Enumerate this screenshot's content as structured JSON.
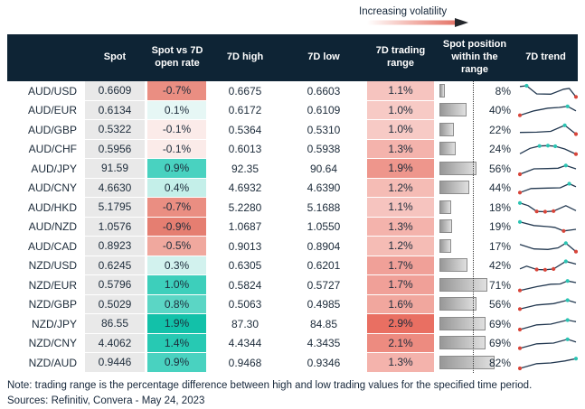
{
  "legend": {
    "label": "Increasing volatility"
  },
  "colors": {
    "header_bg": "#0E2435",
    "text": "#1C2B3A",
    "spot_column_bg": "#E9E9E9",
    "bar_border": "#8C8C8C",
    "bar_gradient_start": "#979797",
    "bar_gradient_end": "#E0E0E0",
    "sparkline_line": "#223850",
    "sparkline_high_dot": "#2BC4B3",
    "sparkline_low_dot": "#D8453A",
    "volatility_arrow_red": "#E4766A"
  },
  "table": {
    "headers": [
      "",
      "Spot",
      "Spot vs 7D open rate",
      "7D high",
      "7D low",
      "7D trading range",
      "Spot position within the range",
      "7D trend"
    ],
    "rows": [
      {
        "pair": "AUD/USD",
        "spot": "0.6609",
        "change": "-0.7%",
        "change_bg": "#EA8E82",
        "high": "0.6675",
        "low": "0.6603",
        "range": "1.1%",
        "range_bg": "#F6C4BF",
        "position_pct": 8,
        "position_label": "8%",
        "trend": {
          "points": [
            [
              0,
              0.15
            ],
            [
              0.12,
              0.1
            ],
            [
              0.3,
              0.7
            ],
            [
              0.55,
              0.72
            ],
            [
              0.78,
              0.35
            ],
            [
              0.88,
              0.3
            ],
            [
              1,
              0.92
            ]
          ],
          "dots": [
            {
              "i": 1,
              "c": "teal"
            },
            {
              "i": 6,
              "c": "red"
            }
          ]
        }
      },
      {
        "pair": "AUD/EUR",
        "spot": "0.6134",
        "change": "0.1%",
        "change_bg": "#E6F7F5",
        "high": "0.6172",
        "low": "0.6109",
        "range": "1.0%",
        "range_bg": "#F7CAC5",
        "position_pct": 40,
        "position_label": "40%",
        "trend": {
          "points": [
            [
              0,
              0.88
            ],
            [
              0.25,
              0.55
            ],
            [
              0.5,
              0.35
            ],
            [
              0.7,
              0.3
            ],
            [
              0.85,
              0.22
            ],
            [
              1,
              0.55
            ]
          ],
          "dots": [
            {
              "i": 0,
              "c": "red"
            },
            {
              "i": 4,
              "c": "teal"
            }
          ]
        }
      },
      {
        "pair": "AUD/GBP",
        "spot": "0.5322",
        "change": "-0.1%",
        "change_bg": "#FBEBE9",
        "high": "0.5364",
        "low": "0.5310",
        "range": "1.0%",
        "range_bg": "#F7CAC5",
        "position_pct": 22,
        "position_label": "22%",
        "trend": {
          "points": [
            [
              0,
              0.68
            ],
            [
              0.3,
              0.66
            ],
            [
              0.55,
              0.6
            ],
            [
              0.8,
              0.15
            ],
            [
              1,
              0.8
            ]
          ],
          "dots": [
            {
              "i": 3,
              "c": "teal"
            },
            {
              "i": 4,
              "c": "red"
            }
          ]
        }
      },
      {
        "pair": "AUD/CHF",
        "spot": "0.5956",
        "change": "-0.1%",
        "change_bg": "#FBEBE9",
        "high": "0.6013",
        "low": "0.5938",
        "range": "1.3%",
        "range_bg": "#F4B3AC",
        "position_pct": 24,
        "position_label": "24%",
        "trend": {
          "points": [
            [
              0,
              0.85
            ],
            [
              0.18,
              0.45
            ],
            [
              0.35,
              0.28
            ],
            [
              0.5,
              0.25
            ],
            [
              0.63,
              0.3
            ],
            [
              0.8,
              0.5
            ],
            [
              1,
              0.88
            ]
          ],
          "dots": [
            {
              "i": 2,
              "c": "teal"
            },
            {
              "i": 3,
              "c": "teal"
            },
            {
              "i": 4,
              "c": "teal"
            },
            {
              "i": 6,
              "c": "red"
            }
          ]
        }
      },
      {
        "pair": "AUD/JPY",
        "spot": "91.59",
        "change": "0.9%",
        "change_bg": "#49D2C0",
        "high": "92.35",
        "low": "90.64",
        "range": "1.9%",
        "range_bg": "#EE968C",
        "position_pct": 56,
        "position_label": "56%",
        "trend": {
          "points": [
            [
              0,
              0.9
            ],
            [
              0.25,
              0.5
            ],
            [
              0.5,
              0.48
            ],
            [
              0.68,
              0.45
            ],
            [
              0.82,
              0.25
            ],
            [
              1,
              0.5
            ]
          ],
          "dots": [
            {
              "i": 0,
              "c": "red"
            },
            {
              "i": 4,
              "c": "teal"
            }
          ]
        }
      },
      {
        "pair": "AUD/CNY",
        "spot": "4.6630",
        "change": "0.4%",
        "change_bg": "#C4EFE9",
        "high": "4.6932",
        "low": "4.6390",
        "range": "1.2%",
        "range_bg": "#F5BCB5",
        "position_pct": 44,
        "position_label": "44%",
        "trend": {
          "points": [
            [
              0,
              0.85
            ],
            [
              0.2,
              0.55
            ],
            [
              0.5,
              0.52
            ],
            [
              0.72,
              0.5
            ],
            [
              0.88,
              0.2
            ],
            [
              1,
              0.42
            ]
          ],
          "dots": [
            {
              "i": 0,
              "c": "red"
            },
            {
              "i": 4,
              "c": "teal"
            }
          ]
        }
      },
      {
        "pair": "AUD/HKD",
        "spot": "5.1795",
        "change": "-0.7%",
        "change_bg": "#EA8E82",
        "high": "5.2280",
        "low": "5.1688",
        "range": "1.1%",
        "range_bg": "#F6C4BF",
        "position_pct": 18,
        "position_label": "18%",
        "trend": {
          "points": [
            [
              0,
              0.15
            ],
            [
              0.15,
              0.35
            ],
            [
              0.3,
              0.78
            ],
            [
              0.45,
              0.8
            ],
            [
              0.6,
              0.75
            ],
            [
              0.82,
              0.35
            ],
            [
              1,
              0.72
            ]
          ],
          "dots": [
            {
              "i": 0,
              "c": "teal"
            },
            {
              "i": 2,
              "c": "red"
            },
            {
              "i": 3,
              "c": "red"
            },
            {
              "i": 4,
              "c": "red"
            }
          ]
        }
      },
      {
        "pair": "AUD/NZD",
        "spot": "1.0576",
        "change": "-0.9%",
        "change_bg": "#E57E71",
        "high": "1.0687",
        "low": "1.0550",
        "range": "1.3%",
        "range_bg": "#F4B3AC",
        "position_pct": 19,
        "position_label": "19%",
        "trend": {
          "points": [
            [
              0,
              0.15
            ],
            [
              0.25,
              0.42
            ],
            [
              0.5,
              0.5
            ],
            [
              0.62,
              0.55
            ],
            [
              0.78,
              0.82
            ],
            [
              1,
              0.7
            ]
          ],
          "dots": [
            {
              "i": 0,
              "c": "teal"
            },
            {
              "i": 4,
              "c": "red"
            }
          ]
        }
      },
      {
        "pair": "AUD/CAD",
        "spot": "0.8923",
        "change": "-0.5%",
        "change_bg": "#F0A89E",
        "high": "0.9013",
        "low": "0.8904",
        "range": "1.2%",
        "range_bg": "#F5BCB5",
        "position_pct": 17,
        "position_label": "17%",
        "trend": {
          "points": [
            [
              0,
              0.35
            ],
            [
              0.25,
              0.68
            ],
            [
              0.5,
              0.72
            ],
            [
              0.68,
              0.6
            ],
            [
              0.82,
              0.25
            ],
            [
              1,
              0.88
            ]
          ],
          "dots": [
            {
              "i": 4,
              "c": "teal"
            },
            {
              "i": 5,
              "c": "red"
            }
          ]
        }
      },
      {
        "pair": "NZD/USD",
        "spot": "0.6245",
        "change": "0.3%",
        "change_bg": "#D2F2EE",
        "high": "0.6305",
        "low": "0.6201",
        "range": "1.7%",
        "range_bg": "#F0A098",
        "position_pct": 42,
        "position_label": "42%",
        "trend": {
          "points": [
            [
              0,
              0.75
            ],
            [
              0.12,
              0.55
            ],
            [
              0.3,
              0.8
            ],
            [
              0.45,
              0.82
            ],
            [
              0.6,
              0.76
            ],
            [
              0.82,
              0.2
            ],
            [
              1,
              0.4
            ]
          ],
          "dots": [
            {
              "i": 2,
              "c": "red"
            },
            {
              "i": 3,
              "c": "red"
            },
            {
              "i": 4,
              "c": "red"
            },
            {
              "i": 5,
              "c": "teal"
            }
          ]
        }
      },
      {
        "pair": "NZD/EUR",
        "spot": "0.5796",
        "change": "1.0%",
        "change_bg": "#3DCFBB",
        "high": "0.5824",
        "low": "0.5727",
        "range": "1.7%",
        "range_bg": "#F0A098",
        "position_pct": 71,
        "position_label": "71%",
        "trend": {
          "points": [
            [
              0,
              0.88
            ],
            [
              0.3,
              0.6
            ],
            [
              0.55,
              0.42
            ],
            [
              0.72,
              0.4
            ],
            [
              0.85,
              0.18
            ],
            [
              1,
              0.3
            ]
          ],
          "dots": [
            {
              "i": 0,
              "c": "red"
            },
            {
              "i": 4,
              "c": "teal"
            }
          ]
        }
      },
      {
        "pair": "NZD/GBP",
        "spot": "0.5029",
        "change": "0.8%",
        "change_bg": "#5BD6C5",
        "high": "0.5063",
        "low": "0.4985",
        "range": "1.6%",
        "range_bg": "#F1A79E",
        "position_pct": 56,
        "position_label": "56%",
        "trend": {
          "points": [
            [
              0,
              0.85
            ],
            [
              0.3,
              0.55
            ],
            [
              0.6,
              0.45
            ],
            [
              0.85,
              0.2
            ],
            [
              1,
              0.38
            ]
          ],
          "dots": [
            {
              "i": 0,
              "c": "red"
            },
            {
              "i": 3,
              "c": "teal"
            }
          ]
        }
      },
      {
        "pair": "NZD/JPY",
        "spot": "86.55",
        "change": "1.9%",
        "change_bg": "#12C1A9",
        "high": "87.30",
        "low": "84.85",
        "range": "2.9%",
        "range_bg": "#E96F62",
        "position_pct": 69,
        "position_label": "69%",
        "trend": {
          "points": [
            [
              0,
              0.9
            ],
            [
              0.3,
              0.55
            ],
            [
              0.55,
              0.5
            ],
            [
              0.85,
              0.2
            ],
            [
              1,
              0.32
            ]
          ],
          "dots": [
            {
              "i": 0,
              "c": "red"
            },
            {
              "i": 3,
              "c": "teal"
            }
          ]
        }
      },
      {
        "pair": "NZD/CNY",
        "spot": "4.4062",
        "change": "1.4%",
        "change_bg": "#27C9B3",
        "high": "4.4344",
        "low": "4.3435",
        "range": "2.1%",
        "range_bg": "#ED8B80",
        "position_pct": 69,
        "position_label": "69%",
        "trend": {
          "points": [
            [
              0,
              0.88
            ],
            [
              0.3,
              0.55
            ],
            [
              0.6,
              0.5
            ],
            [
              0.85,
              0.22
            ],
            [
              1,
              0.42
            ]
          ],
          "dots": [
            {
              "i": 0,
              "c": "red"
            },
            {
              "i": 3,
              "c": "teal"
            }
          ]
        }
      },
      {
        "pair": "NZD/AUD",
        "spot": "0.9446",
        "change": "0.9%",
        "change_bg": "#49D2C0",
        "high": "0.9468",
        "low": "0.9346",
        "range": "1.3%",
        "range_bg": "#F4B3AC",
        "position_pct": 82,
        "position_label": "82%",
        "trend": {
          "points": [
            [
              0,
              0.9
            ],
            [
              0.3,
              0.55
            ],
            [
              0.55,
              0.5
            ],
            [
              0.8,
              0.35
            ],
            [
              1,
              0.18
            ]
          ],
          "dots": [
            {
              "i": 0,
              "c": "red"
            },
            {
              "i": 4,
              "c": "teal"
            }
          ]
        }
      }
    ]
  },
  "footer": {
    "note": "Note: trading range is the percentage difference between high and low trading values for the specified time period.",
    "sources": "Sources: Refinitiv, Convera - May 24, 2023"
  }
}
